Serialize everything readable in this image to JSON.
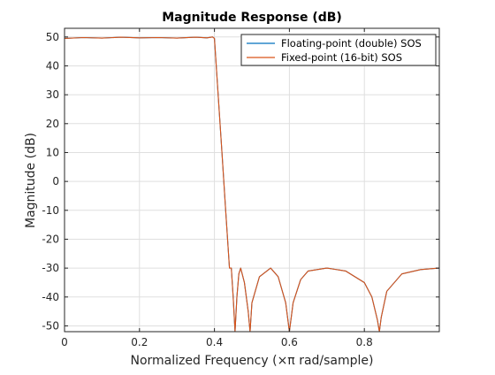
{
  "chart_data": {
    "type": "line",
    "title": "Magnitude Response (dB)",
    "xlabel": "Normalized Frequency (×π rad/sample)",
    "ylabel": "Magnitude (dB)",
    "xlim": [
      0,
      1
    ],
    "ylim": [
      -52,
      53
    ],
    "xticks": [
      0,
      0.2,
      0.4,
      0.6,
      0.8
    ],
    "xtick_labels": [
      "0",
      "0.2",
      "0.4",
      "0.6",
      "0.8"
    ],
    "yticks": [
      50,
      40,
      30,
      20,
      10,
      0,
      -10,
      -20,
      -30,
      -40,
      -50
    ],
    "ytick_labels": [
      "50",
      "40",
      "30",
      "20",
      "10",
      "0",
      "-10",
      "-20",
      "-30",
      "-40",
      "-50"
    ],
    "grid": true,
    "legend_position": "top-right",
    "series": [
      {
        "name": "Floating-point (double) SOS",
        "color": "#0072bd",
        "x": [
          0,
          0.05,
          0.1,
          0.15,
          0.2,
          0.25,
          0.3,
          0.35,
          0.38,
          0.395,
          0.4,
          0.41,
          0.42,
          0.43,
          0.44,
          0.445,
          0.45,
          0.455,
          0.46,
          0.465,
          0.47,
          0.48,
          0.49,
          0.495,
          0.5,
          0.52,
          0.55,
          0.57,
          0.59,
          0.6,
          0.61,
          0.63,
          0.65,
          0.7,
          0.75,
          0.8,
          0.82,
          0.835,
          0.84,
          0.845,
          0.86,
          0.9,
          0.95,
          1.0
        ],
        "y": [
          49.5,
          49.8,
          49.6,
          49.9,
          49.7,
          49.8,
          49.6,
          49.9,
          49.7,
          50.0,
          49.5,
          30,
          10,
          -10,
          -30,
          -30,
          -40,
          -52,
          -40,
          -32,
          -30,
          -35,
          -45,
          -52,
          -42,
          -33,
          -30,
          -33,
          -42,
          -52,
          -42,
          -34,
          -31,
          -30,
          -31,
          -35,
          -40,
          -48,
          -52,
          -47,
          -38,
          -32,
          -30.5,
          -30
        ]
      },
      {
        "name": "Fixed-point (16-bit) SOS",
        "color": "#d95319",
        "x": [
          0,
          0.05,
          0.1,
          0.15,
          0.2,
          0.25,
          0.3,
          0.35,
          0.38,
          0.395,
          0.4,
          0.41,
          0.42,
          0.43,
          0.44,
          0.445,
          0.45,
          0.455,
          0.46,
          0.465,
          0.47,
          0.48,
          0.49,
          0.495,
          0.5,
          0.52,
          0.55,
          0.57,
          0.59,
          0.6,
          0.61,
          0.63,
          0.65,
          0.7,
          0.75,
          0.8,
          0.82,
          0.835,
          0.84,
          0.845,
          0.86,
          0.9,
          0.95,
          1.0
        ],
        "y": [
          49.5,
          49.8,
          49.6,
          49.9,
          49.7,
          49.8,
          49.6,
          49.9,
          49.7,
          50.0,
          49.5,
          30,
          10,
          -10,
          -30,
          -30,
          -40,
          -52,
          -40,
          -32,
          -30,
          -35,
          -45,
          -52,
          -42,
          -33,
          -30,
          -33,
          -42,
          -52,
          -42,
          -34,
          -31,
          -30,
          -31,
          -35,
          -40,
          -48,
          -52,
          -47,
          -38,
          -32,
          -30.5,
          -30
        ]
      }
    ]
  }
}
